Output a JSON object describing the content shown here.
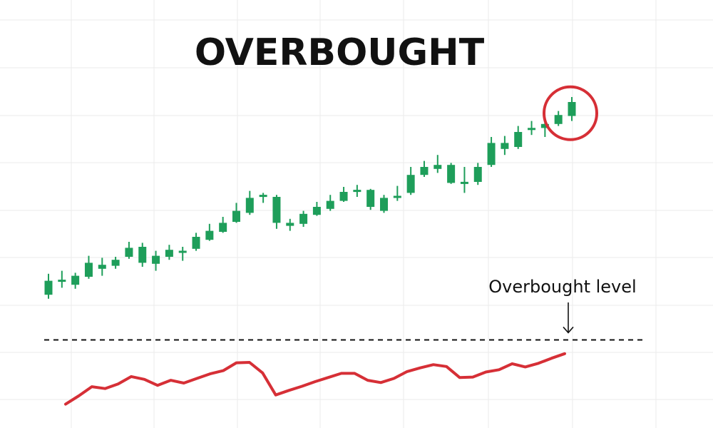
{
  "chart_data": {
    "type": "candlestick",
    "title": "OVERBOUGHT",
    "xlabel": "",
    "ylabel": "",
    "grid": true,
    "legend": "none",
    "price_candles": [
      {
        "open": 1.0,
        "close": 8.0,
        "high": 11.5,
        "low": -1.0
      },
      {
        "open": 7.0,
        "close": 8.0,
        "high": 13.0,
        "low": 4.5
      },
      {
        "open": 6.0,
        "close": 10.5,
        "high": 12.0,
        "low": 4.0
      },
      {
        "open": 10.0,
        "close": 17.0,
        "high": 20.5,
        "low": 9.0
      },
      {
        "open": 14.0,
        "close": 16.0,
        "high": 19.5,
        "low": 10.5
      },
      {
        "open": 15.5,
        "close": 18.5,
        "high": 20.0,
        "low": 14.0
      },
      {
        "open": 20.0,
        "close": 24.5,
        "high": 27.5,
        "low": 19.0
      },
      {
        "open": 25.0,
        "close": 17.0,
        "high": 27.0,
        "low": 15.0
      },
      {
        "open": 16.5,
        "close": 20.5,
        "high": 23.0,
        "low": 13.0
      },
      {
        "open": 20.0,
        "close": 23.5,
        "high": 26.0,
        "low": 18.5
      },
      {
        "open": 22.0,
        "close": 22.5,
        "high": 25.0,
        "low": 18.0
      },
      {
        "open": 24.0,
        "close": 30.0,
        "high": 32.0,
        "low": 23.0
      },
      {
        "open": 28.5,
        "close": 33.0,
        "high": 36.5,
        "low": 28.0
      },
      {
        "open": 32.5,
        "close": 37.0,
        "high": 40.0,
        "low": 32.0
      },
      {
        "open": 37.5,
        "close": 43.0,
        "high": 47.0,
        "low": 37.0
      },
      {
        "open": 42.0,
        "close": 49.5,
        "high": 53.0,
        "low": 41.0
      },
      {
        "open": 50.0,
        "close": 50.5,
        "high": 52.0,
        "low": 47.0
      },
      {
        "open": 50.0,
        "close": 37.0,
        "high": 51.0,
        "low": 34.0
      },
      {
        "open": 35.5,
        "close": 37.0,
        "high": 39.0,
        "low": 33.0
      },
      {
        "open": 36.5,
        "close": 41.5,
        "high": 43.0,
        "low": 35.0
      },
      {
        "open": 41.0,
        "close": 45.0,
        "high": 47.5,
        "low": 40.5
      },
      {
        "open": 44.0,
        "close": 48.0,
        "high": 51.0,
        "low": 43.0
      },
      {
        "open": 48.0,
        "close": 52.5,
        "high": 55.0,
        "low": 47.5
      },
      {
        "open": 52.5,
        "close": 53.0,
        "high": 56.0,
        "low": 50.0
      },
      {
        "open": 53.5,
        "close": 45.0,
        "high": 54.0,
        "low": 43.5
      },
      {
        "open": 43.0,
        "close": 49.5,
        "high": 51.0,
        "low": 42.0
      },
      {
        "open": 49.0,
        "close": 50.0,
        "high": 55.5,
        "low": 48.0
      },
      {
        "open": 52.0,
        "close": 61.0,
        "high": 65.0,
        "low": 51.0
      },
      {
        "open": 61.0,
        "close": 65.0,
        "high": 68.0,
        "low": 60.0
      },
      {
        "open": 64.0,
        "close": 66.0,
        "high": 71.0,
        "low": 62.0
      },
      {
        "open": 66.0,
        "close": 57.0,
        "high": 67.0,
        "low": 56.5
      },
      {
        "open": 56.0,
        "close": 57.0,
        "high": 65.0,
        "low": 52.0
      },
      {
        "open": 57.5,
        "close": 65.0,
        "high": 67.0,
        "low": 56.0
      },
      {
        "open": 66.0,
        "close": 77.0,
        "high": 80.0,
        "low": 65.0
      },
      {
        "open": 74.0,
        "close": 77.0,
        "high": 80.5,
        "low": 71.0
      },
      {
        "open": 75.0,
        "close": 82.5,
        "high": 85.5,
        "low": 74.0
      },
      {
        "open": 83.0,
        "close": 84.0,
        "high": 88.0,
        "low": 81.0
      },
      {
        "open": 84.5,
        "close": 86.5,
        "high": 89.5,
        "low": 80.0
      },
      {
        "open": 86.5,
        "close": 91.0,
        "high": 93.0,
        "low": 85.5
      },
      {
        "open": 90.5,
        "close": 97.5,
        "high": 100.0,
        "low": 88.0
      }
    ],
    "price_ylim": [
      -5,
      105
    ],
    "oscillator": {
      "values": [
        0.0,
        9.0,
        19.0,
        17.0,
        22.0,
        30.0,
        27.0,
        20.5,
        26.0,
        23.0,
        28.0,
        33.0,
        36.5,
        45.0,
        45.5,
        34.0,
        10.0,
        15.0,
        19.5,
        24.5,
        29.0,
        33.5,
        33.5,
        26.0,
        23.5,
        28.0,
        35.5,
        39.5,
        43.0,
        41.0,
        29.0,
        29.5,
        35.0,
        37.5,
        44.0,
        40.5,
        44.5,
        50.0,
        55.0
      ],
      "ylim": [
        -5,
        75
      ]
    },
    "reference_line": {
      "value": 70,
      "style": "dashed",
      "color": "#111111"
    },
    "highlight_candle_index": 39,
    "annotation": "Overbought level",
    "colors": {
      "candle": "#1e9e5a",
      "oscillator": "#d62f36",
      "highlight": "#d62f36",
      "grid": "#ebebeb"
    }
  }
}
